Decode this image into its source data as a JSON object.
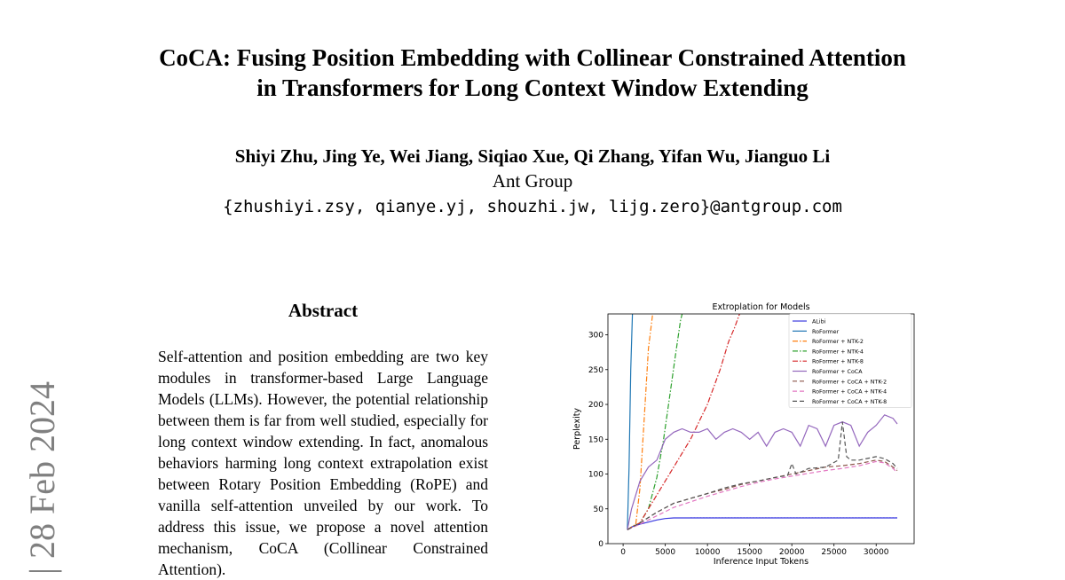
{
  "paper": {
    "title_line1": "CoCA: Fusing Position Embedding with Collinear Constrained Attention",
    "title_line2": "in Transformers for Long Context Window Extending",
    "authors": "Shiyi Zhu, Jing Ye, Wei Jiang, Siqiao Xue, Qi Zhang, Yifan Wu, Jianguo Li",
    "affiliation": "Ant Group",
    "emails": "{zhushiyi.zsy, qianye.yj, shouzhi.jw, lijg.zero}@antgroup.com",
    "arxiv_stamp": "| 28 Feb 2024",
    "abstract_heading": "Abstract",
    "abstract_text": "Self-attention and position embedding are two key modules in transformer-based Large Language Models (LLMs). However, the potential relationship between them is far from well studied, especially for long context window extending. In fact, anomalous behaviors harming long context extrapolation exist between Rotary Position Embedding (RoPE) and vanilla self-attention unveiled by our work. To address this issue, we propose a novel attention mechanism, CoCA (Collinear Constrained Attention)."
  },
  "chart_data": {
    "type": "line",
    "title": "Extroplation for Models",
    "xlabel": "Inference Input Tokens",
    "ylabel": "Perplexity",
    "xlim": [
      -1800,
      34500
    ],
    "ylim": [
      0,
      330
    ],
    "xticks": [
      0,
      5000,
      10000,
      15000,
      20000,
      25000,
      30000
    ],
    "yticks": [
      0,
      50,
      100,
      150,
      200,
      250,
      300
    ],
    "legend_position": "top-right",
    "grid": false,
    "series": [
      {
        "name": "ALibi",
        "color": "#3a3ae0",
        "style": "solid",
        "x": [
          500,
          1000,
          2000,
          3000,
          4000,
          5000,
          6000,
          7000,
          8000,
          9000,
          12000,
          16000,
          20000,
          24000,
          28000,
          32500
        ],
        "y": [
          20,
          24,
          28,
          31,
          34,
          36,
          37,
          37,
          37,
          37,
          37,
          37,
          37,
          37,
          37,
          37
        ]
      },
      {
        "name": "RoFormer",
        "color": "#1f77b4",
        "style": "solid",
        "x": [
          500,
          700,
          900,
          1100
        ],
        "y": [
          20,
          110,
          250,
          330
        ]
      },
      {
        "name": "RoFormer + NTK-2",
        "color": "#ff7f0e",
        "style": "dashdot",
        "x": [
          500,
          1500,
          2000,
          2500,
          3000,
          3500
        ],
        "y": [
          20,
          28,
          80,
          180,
          280,
          330
        ]
      },
      {
        "name": "RoFormer + NTK-4",
        "color": "#2ca02c",
        "style": "dashdot",
        "x": [
          500,
          2000,
          3000,
          4000,
          4800,
          5500,
          6200,
          6800,
          7000
        ],
        "y": [
          20,
          30,
          50,
          95,
          150,
          210,
          270,
          320,
          330
        ]
      },
      {
        "name": "RoFormer + NTK-8",
        "color": "#d62728",
        "style": "dashdot",
        "x": [
          500,
          2000,
          4000,
          6000,
          8000,
          10000,
          11500,
          12500,
          13200,
          13800
        ],
        "y": [
          20,
          30,
          70,
          110,
          150,
          200,
          250,
          290,
          310,
          330
        ]
      },
      {
        "name": "RoFormer + CoCA",
        "color": "#9467bd",
        "style": "solid",
        "x": [
          500,
          1000,
          2000,
          3000,
          4000,
          5000,
          6000,
          7000,
          8000,
          9000,
          10000,
          11000,
          12000,
          13000,
          14000,
          15000,
          16000,
          17000,
          18000,
          19000,
          20000,
          21000,
          22000,
          23000,
          24000,
          25000,
          26000,
          27000,
          28000,
          29000,
          30000,
          31000,
          32000,
          32500
        ],
        "y": [
          20,
          50,
          90,
          110,
          120,
          150,
          160,
          165,
          160,
          160,
          165,
          150,
          160,
          165,
          160,
          150,
          160,
          140,
          160,
          165,
          160,
          140,
          170,
          165,
          140,
          170,
          175,
          170,
          140,
          160,
          170,
          185,
          180,
          172
        ]
      },
      {
        "name": "RoFormer + CoCA + NTK-2",
        "color": "#8c564b",
        "style": "dashed",
        "x": [
          500,
          2000,
          4000,
          6000,
          8000,
          10000,
          12000,
          14000,
          16000,
          18000,
          20000,
          22000,
          24000,
          26000,
          28000,
          30000,
          31000,
          32000,
          32500
        ],
        "y": [
          20,
          30,
          45,
          58,
          65,
          72,
          78,
          85,
          90,
          95,
          100,
          105,
          110,
          112,
          115,
          120,
          118,
          110,
          105
        ]
      },
      {
        "name": "RoFormer + CoCA + NTK-4",
        "color": "#e377c2",
        "style": "dashed",
        "x": [
          500,
          2000,
          4000,
          6000,
          8000,
          10000,
          12000,
          14000,
          16000,
          18000,
          20000,
          22000,
          24000,
          26000,
          28000,
          30000,
          31000,
          32000,
          32500
        ],
        "y": [
          20,
          28,
          40,
          52,
          60,
          68,
          75,
          82,
          88,
          93,
          97,
          101,
          105,
          108,
          112,
          118,
          116,
          108,
          102
        ]
      },
      {
        "name": "RoFormer + CoCA + NTK-8",
        "color": "#555555",
        "style": "dashed",
        "x": [
          500,
          2000,
          4000,
          6000,
          8000,
          10000,
          12000,
          14000,
          16000,
          18000,
          19500,
          20000,
          20500,
          22000,
          24000,
          25500,
          26000,
          26500,
          27000,
          28000,
          30000,
          31000,
          32000,
          32500
        ],
        "y": [
          20,
          30,
          45,
          58,
          65,
          72,
          80,
          86,
          90,
          95,
          98,
          115,
          100,
          108,
          110,
          120,
          175,
          125,
          120,
          120,
          125,
          122,
          115,
          108
        ]
      }
    ]
  }
}
